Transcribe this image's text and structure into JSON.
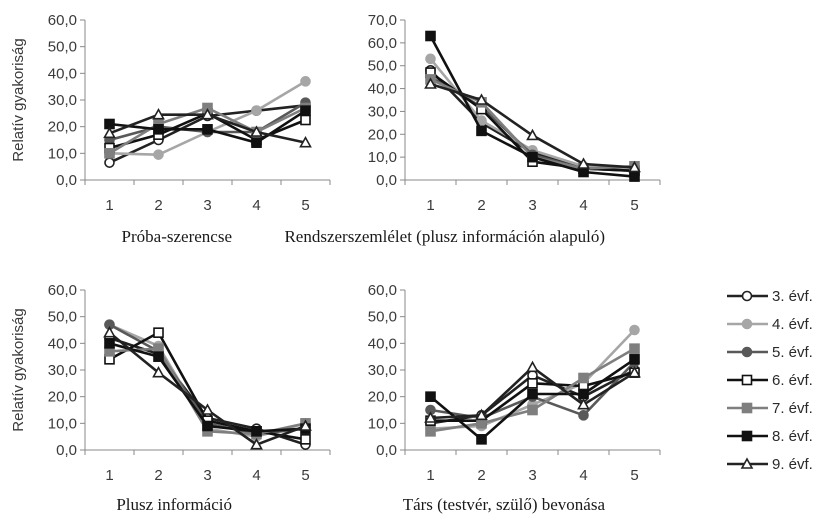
{
  "y_axis_label": "Relatív gyakoriság",
  "series_styles": [
    {
      "name": "3. évf.",
      "color": "#222222",
      "marker": "circle-open"
    },
    {
      "name": "4. évf.",
      "color": "#a6a6a6",
      "marker": "circle-filled"
    },
    {
      "name": "5. évf.",
      "color": "#595959",
      "marker": "circle-filled"
    },
    {
      "name": "6. évf.",
      "color": "#111111",
      "marker": "square-open"
    },
    {
      "name": "7. évf.",
      "color": "#7f7f7f",
      "marker": "square-filled"
    },
    {
      "name": "8. évf.",
      "color": "#111111",
      "marker": "square-filled"
    },
    {
      "name": "9. évf.",
      "color": "#222222",
      "marker": "triangle-open"
    }
  ],
  "chart_data": [
    {
      "type": "line",
      "title": "Próba-szerencse",
      "ylabel": "Relatív gyakoriság",
      "x": [
        "1",
        "2",
        "3",
        "4",
        "5"
      ],
      "ylim": [
        0,
        60
      ],
      "yticks": [
        "0,0",
        "10,0",
        "20,0",
        "30,0",
        "40,0",
        "50,0",
        "60,0"
      ],
      "series": [
        {
          "name": "3. évf.",
          "values": [
            6.5,
            15,
            24,
            26,
            28
          ]
        },
        {
          "name": "4. évf.",
          "values": [
            10,
            9.5,
            18,
            26,
            37
          ]
        },
        {
          "name": "5. évf.",
          "values": [
            15,
            20,
            18,
            18,
            29
          ]
        },
        {
          "name": "6. évf.",
          "values": [
            12,
            17,
            25,
            15,
            22.5
          ]
        },
        {
          "name": "7. évf.",
          "values": [
            10,
            21,
            27,
            18,
            27
          ]
        },
        {
          "name": "8. évf.",
          "values": [
            21,
            19,
            19,
            14,
            26
          ]
        },
        {
          "name": "9. évf.",
          "values": [
            17.5,
            24.5,
            24.5,
            18,
            14
          ]
        }
      ]
    },
    {
      "type": "line",
      "title": "Rendszerszemlélet (plusz információn alapuló)",
      "ylabel": "",
      "x": [
        "1",
        "2",
        "3",
        "4",
        "5"
      ],
      "ylim": [
        0,
        70
      ],
      "yticks": [
        "0,0",
        "10,0",
        "20,0",
        "30,0",
        "40,0",
        "50,0",
        "60,0",
        "70,0"
      ],
      "series": [
        {
          "name": "3. évf.",
          "values": [
            48,
            25,
            12,
            6,
            4
          ]
        },
        {
          "name": "4. évf.",
          "values": [
            53,
            26,
            13,
            6,
            5
          ]
        },
        {
          "name": "5. évf.",
          "values": [
            45,
            32,
            11,
            5,
            4
          ]
        },
        {
          "name": "6. évf.",
          "values": [
            47,
            31,
            8,
            5,
            4
          ]
        },
        {
          "name": "7. évf.",
          "values": [
            44,
            34,
            10,
            5,
            6
          ]
        },
        {
          "name": "8. évf.",
          "values": [
            63,
            21.5,
            10,
            3.5,
            1.5
          ]
        },
        {
          "name": "9. évf.",
          "values": [
            42,
            35,
            19.5,
            7,
            5.5
          ]
        }
      ]
    },
    {
      "type": "line",
      "title": "Plusz információ",
      "ylabel": "Relatív gyakoriság",
      "x": [
        "1",
        "2",
        "3",
        "4",
        "5"
      ],
      "ylim": [
        0,
        60
      ],
      "yticks": [
        "0,0",
        "10,0",
        "20,0",
        "30,0",
        "40,0",
        "50,0",
        "60,0"
      ],
      "series": [
        {
          "name": "3. évf.",
          "values": [
            42,
            36,
            12,
            8,
            2
          ]
        },
        {
          "name": "4. évf.",
          "values": [
            47,
            39,
            8,
            5,
            10
          ]
        },
        {
          "name": "5. évf.",
          "values": [
            47,
            37,
            10,
            6,
            8
          ]
        },
        {
          "name": "6. évf.",
          "values": [
            34,
            44,
            11,
            7,
            4
          ]
        },
        {
          "name": "7. évf.",
          "values": [
            37,
            38,
            7,
            6,
            10
          ]
        },
        {
          "name": "8. évf.",
          "values": [
            40,
            35,
            9,
            7,
            8
          ]
        },
        {
          "name": "9. évf.",
          "values": [
            44,
            29,
            15,
            2,
            9
          ]
        }
      ]
    },
    {
      "type": "line",
      "title": "Társ (testvér, szülő) bevonása",
      "ylabel": "",
      "x": [
        "1",
        "2",
        "3",
        "4",
        "5"
      ],
      "ylim": [
        0,
        60
      ],
      "yticks": [
        "0,0",
        "10,0",
        "20,0",
        "30,0",
        "40,0",
        "50,0",
        "60,0"
      ],
      "series": [
        {
          "name": "3. évf.",
          "values": [
            10,
            13,
            28,
            20,
            30
          ]
        },
        {
          "name": "4. évf.",
          "values": [
            8,
            9,
            17,
            25,
            45
          ]
        },
        {
          "name": "5. évf.",
          "values": [
            15,
            12,
            20,
            13,
            33
          ]
        },
        {
          "name": "6. évf.",
          "values": [
            11,
            11,
            25,
            24,
            29
          ]
        },
        {
          "name": "7. évf.",
          "values": [
            7,
            10,
            15,
            27,
            38
          ]
        },
        {
          "name": "8. évf.",
          "values": [
            20,
            4,
            21,
            21,
            34
          ]
        },
        {
          "name": "9. évf.",
          "values": [
            12,
            13,
            31,
            17,
            29
          ]
        }
      ]
    }
  ]
}
